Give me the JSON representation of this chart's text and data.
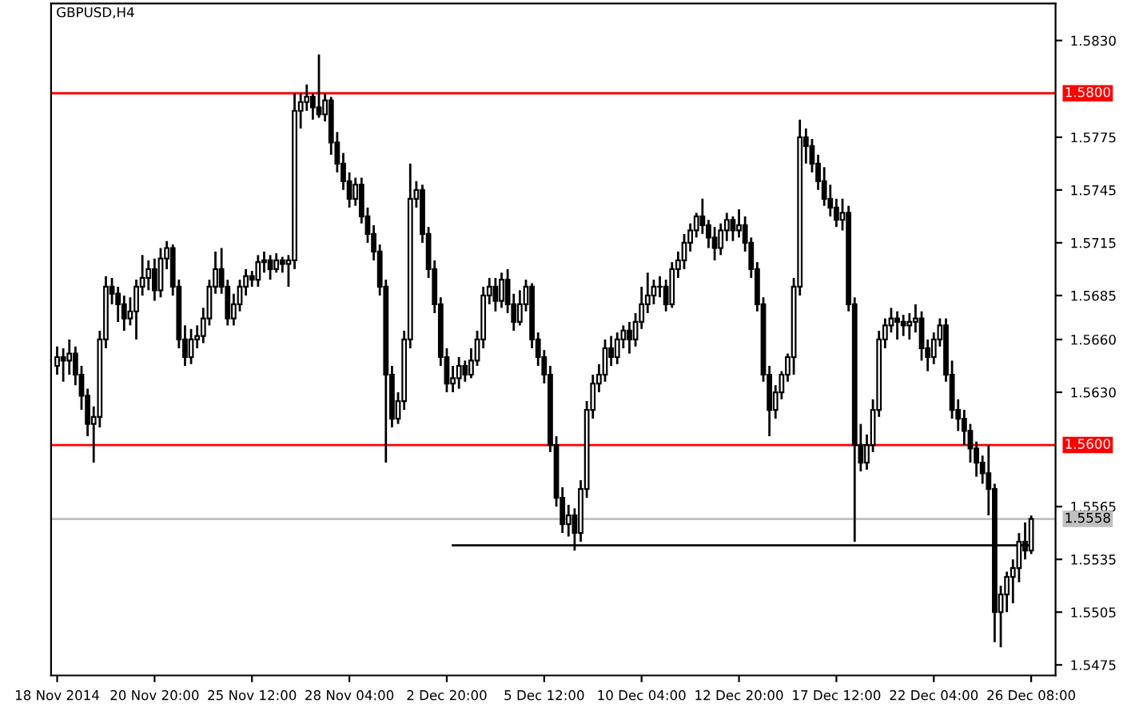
{
  "chart_data": {
    "type": "candlestick",
    "title": "GBPUSD,H4",
    "color": "#000000",
    "categories": [
      "18 Nov 2014",
      null,
      null,
      null,
      null,
      null,
      null,
      null,
      null,
      null,
      null,
      null,
      null,
      null,
      null,
      null,
      "20 Nov 20:00",
      null,
      null,
      null,
      null,
      null,
      null,
      null,
      null,
      null,
      null,
      null,
      null,
      null,
      null,
      null,
      "25 Nov 12:00",
      null,
      null,
      null,
      null,
      null,
      null,
      null,
      null,
      null,
      null,
      null,
      null,
      null,
      null,
      null,
      "28 Nov 04:00",
      null,
      null,
      null,
      null,
      null,
      null,
      null,
      null,
      null,
      null,
      null,
      null,
      null,
      null,
      null,
      "2 Dec 20:00",
      null,
      null,
      null,
      null,
      null,
      null,
      null,
      null,
      null,
      null,
      null,
      null,
      null,
      null,
      null,
      "5 Dec 12:00",
      null,
      null,
      null,
      null,
      null,
      null,
      null,
      null,
      null,
      null,
      null,
      null,
      null,
      null,
      null,
      "10 Dec 04:00",
      null,
      null,
      null,
      null,
      null,
      null,
      null,
      null,
      null,
      null,
      null,
      null,
      null,
      null,
      null,
      "12 Dec 20:00",
      null,
      null,
      null,
      null,
      null,
      null,
      null,
      null,
      null,
      null,
      null,
      null,
      null,
      null,
      null,
      "17 Dec 12:00",
      null,
      null,
      null,
      null,
      null,
      null,
      null,
      null,
      null,
      null,
      null,
      null,
      null,
      null,
      null,
      "22 Dec 04:00",
      null,
      null,
      null,
      null,
      null,
      null,
      null,
      null,
      null,
      null,
      null,
      null,
      null,
      null,
      null,
      "26 Dec 08:00"
    ],
    "ohlc": [
      [
        1.5645,
        1.5656,
        1.564,
        1.565
      ],
      [
        1.565,
        1.5655,
        1.5636,
        1.5648
      ],
      [
        1.5648,
        1.566,
        1.564,
        1.5652
      ],
      [
        1.5652,
        1.5656,
        1.5634,
        1.564
      ],
      [
        1.564,
        1.5645,
        1.562,
        1.5628
      ],
      [
        1.5628,
        1.5632,
        1.5605,
        1.5612
      ],
      [
        1.5612,
        1.5622,
        1.559,
        1.5616
      ],
      [
        1.5616,
        1.5665,
        1.561,
        1.566
      ],
      [
        1.566,
        1.5696,
        1.5655,
        1.569
      ],
      [
        1.569,
        1.5695,
        1.568,
        1.5686
      ],
      [
        1.5686,
        1.569,
        1.567,
        1.568
      ],
      [
        1.568,
        1.5685,
        1.5665,
        1.5672
      ],
      [
        1.5672,
        1.5684,
        1.5668,
        1.5676
      ],
      [
        1.5676,
        1.5694,
        1.566,
        1.569
      ],
      [
        1.569,
        1.5708,
        1.5685,
        1.5695
      ],
      [
        1.5695,
        1.5705,
        1.5688,
        1.57
      ],
      [
        1.57,
        1.5706,
        1.5682,
        1.5688
      ],
      [
        1.5688,
        1.5712,
        1.5684,
        1.5706
      ],
      [
        1.5706,
        1.5716,
        1.57,
        1.5712
      ],
      [
        1.5712,
        1.5714,
        1.5685,
        1.569
      ],
      [
        1.569,
        1.5694,
        1.5655,
        1.566
      ],
      [
        1.566,
        1.5668,
        1.5645,
        1.565
      ],
      [
        1.565,
        1.5666,
        1.5646,
        1.566
      ],
      [
        1.566,
        1.5668,
        1.5655,
        1.5662
      ],
      [
        1.5662,
        1.5678,
        1.5658,
        1.5672
      ],
      [
        1.5672,
        1.5694,
        1.5668,
        1.569
      ],
      [
        1.569,
        1.571,
        1.5686,
        1.57
      ],
      [
        1.57,
        1.5712,
        1.5686,
        1.569
      ],
      [
        1.569,
        1.5694,
        1.5668,
        1.5672
      ],
      [
        1.5672,
        1.5686,
        1.5668,
        1.568
      ],
      [
        1.568,
        1.5694,
        1.5676,
        1.569
      ],
      [
        1.569,
        1.57,
        1.5685,
        1.5696
      ],
      [
        1.5696,
        1.5699,
        1.569,
        1.5694
      ],
      [
        1.5694,
        1.5708,
        1.569,
        1.5704
      ],
      [
        1.5704,
        1.571,
        1.5698,
        1.5705
      ],
      [
        1.5705,
        1.5708,
        1.5694,
        1.57
      ],
      [
        1.57,
        1.5709,
        1.5698,
        1.5705
      ],
      [
        1.5705,
        1.5707,
        1.5698,
        1.5703
      ],
      [
        1.5703,
        1.5708,
        1.569,
        1.5705
      ],
      [
        1.5705,
        1.58,
        1.57,
        1.579
      ],
      [
        1.579,
        1.58,
        1.578,
        1.5795
      ],
      [
        1.5795,
        1.5805,
        1.579,
        1.5798
      ],
      [
        1.5798,
        1.58,
        1.5785,
        1.5792
      ],
      [
        1.5792,
        1.5822,
        1.5786,
        1.5788
      ],
      [
        1.5788,
        1.58,
        1.5784,
        1.5796
      ],
      [
        1.5796,
        1.5798,
        1.5765,
        1.5772
      ],
      [
        1.5772,
        1.5778,
        1.5755,
        1.576
      ],
      [
        1.576,
        1.5766,
        1.5745,
        1.575
      ],
      [
        1.575,
        1.5755,
        1.5735,
        1.574
      ],
      [
        1.574,
        1.5752,
        1.5736,
        1.5748
      ],
      [
        1.5748,
        1.5752,
        1.5726,
        1.573
      ],
      [
        1.573,
        1.5735,
        1.5715,
        1.572
      ],
      [
        1.572,
        1.5725,
        1.5705,
        1.571
      ],
      [
        1.571,
        1.5714,
        1.5685,
        1.569
      ],
      [
        1.569,
        1.5694,
        1.559,
        1.564
      ],
      [
        1.564,
        1.5645,
        1.561,
        1.5615
      ],
      [
        1.5615,
        1.563,
        1.5612,
        1.5625
      ],
      [
        1.5625,
        1.5665,
        1.562,
        1.566
      ],
      [
        1.566,
        1.576,
        1.5655,
        1.574
      ],
      [
        1.574,
        1.575,
        1.5735,
        1.5745
      ],
      [
        1.5745,
        1.5748,
        1.5715,
        1.572
      ],
      [
        1.572,
        1.5724,
        1.5695,
        1.57
      ],
      [
        1.57,
        1.5705,
        1.5675,
        1.568
      ],
      [
        1.568,
        1.5684,
        1.5645,
        1.565
      ],
      [
        1.565,
        1.5655,
        1.563,
        1.5635
      ],
      [
        1.5635,
        1.5645,
        1.563,
        1.5638
      ],
      [
        1.5638,
        1.565,
        1.5632,
        1.5645
      ],
      [
        1.5645,
        1.5648,
        1.5636,
        1.564
      ],
      [
        1.564,
        1.5655,
        1.5638,
        1.5648
      ],
      [
        1.5648,
        1.5665,
        1.5645,
        1.566
      ],
      [
        1.566,
        1.569,
        1.5655,
        1.5685
      ],
      [
        1.5685,
        1.5695,
        1.568,
        1.569
      ],
      [
        1.569,
        1.5695,
        1.5676,
        1.5682
      ],
      [
        1.5682,
        1.5698,
        1.5678,
        1.5694
      ],
      [
        1.5694,
        1.57,
        1.5675,
        1.568
      ],
      [
        1.568,
        1.5686,
        1.5665,
        1.567
      ],
      [
        1.567,
        1.5688,
        1.5668,
        1.568
      ],
      [
        1.568,
        1.5694,
        1.5676,
        1.569
      ],
      [
        1.569,
        1.5692,
        1.5655,
        1.566
      ],
      [
        1.566,
        1.5664,
        1.5645,
        1.565
      ],
      [
        1.565,
        1.5654,
        1.5635,
        1.564
      ],
      [
        1.564,
        1.5645,
        1.5596,
        1.56
      ],
      [
        1.56,
        1.5605,
        1.5565,
        1.557
      ],
      [
        1.557,
        1.5576,
        1.555,
        1.5555
      ],
      [
        1.5555,
        1.5566,
        1.5548,
        1.556
      ],
      [
        1.556,
        1.5564,
        1.554,
        1.555
      ],
      [
        1.555,
        1.558,
        1.5545,
        1.5575
      ],
      [
        1.5575,
        1.5625,
        1.557,
        1.562
      ],
      [
        1.562,
        1.564,
        1.5615,
        1.5635
      ],
      [
        1.5635,
        1.5646,
        1.563,
        1.564
      ],
      [
        1.564,
        1.566,
        1.5636,
        1.5655
      ],
      [
        1.5655,
        1.5662,
        1.5645,
        1.565
      ],
      [
        1.565,
        1.5664,
        1.5646,
        1.566
      ],
      [
        1.566,
        1.5668,
        1.5655,
        1.5665
      ],
      [
        1.5665,
        1.567,
        1.5652,
        1.566
      ],
      [
        1.566,
        1.5675,
        1.5656,
        1.567
      ],
      [
        1.567,
        1.569,
        1.5666,
        1.568
      ],
      [
        1.568,
        1.5698,
        1.5675,
        1.5685
      ],
      [
        1.5685,
        1.5694,
        1.568,
        1.569
      ],
      [
        1.569,
        1.5696,
        1.5684,
        1.569
      ],
      [
        1.569,
        1.5694,
        1.5676,
        1.568
      ],
      [
        1.568,
        1.5704,
        1.5678,
        1.57
      ],
      [
        1.57,
        1.571,
        1.5695,
        1.5705
      ],
      [
        1.5705,
        1.572,
        1.57,
        1.5715
      ],
      [
        1.5715,
        1.5726,
        1.571,
        1.5722
      ],
      [
        1.5722,
        1.5732,
        1.5718,
        1.573
      ],
      [
        1.573,
        1.574,
        1.572,
        1.5725
      ],
      [
        1.5725,
        1.5728,
        1.5712,
        1.5718
      ],
      [
        1.5718,
        1.5724,
        1.5705,
        1.5712
      ],
      [
        1.5712,
        1.5726,
        1.5708,
        1.5722
      ],
      [
        1.5722,
        1.5732,
        1.5716,
        1.5728
      ],
      [
        1.5728,
        1.573,
        1.5716,
        1.5722
      ],
      [
        1.5722,
        1.5734,
        1.5718,
        1.5725
      ],
      [
        1.5725,
        1.573,
        1.571,
        1.5715
      ],
      [
        1.5715,
        1.5718,
        1.5695,
        1.57
      ],
      [
        1.57,
        1.5704,
        1.5676,
        1.568
      ],
      [
        1.568,
        1.5684,
        1.5636,
        1.564
      ],
      [
        1.564,
        1.5645,
        1.5605,
        1.562
      ],
      [
        1.562,
        1.5634,
        1.5615,
        1.563
      ],
      [
        1.563,
        1.5642,
        1.5626,
        1.564
      ],
      [
        1.564,
        1.5652,
        1.5636,
        1.565
      ],
      [
        1.565,
        1.5695,
        1.564,
        1.569
      ],
      [
        1.569,
        1.5785,
        1.5685,
        1.5775
      ],
      [
        1.5775,
        1.578,
        1.576,
        1.577
      ],
      [
        1.577,
        1.5774,
        1.5755,
        1.576
      ],
      [
        1.576,
        1.5765,
        1.5745,
        1.575
      ],
      [
        1.575,
        1.5758,
        1.5736,
        1.574
      ],
      [
        1.574,
        1.5748,
        1.573,
        1.5735
      ],
      [
        1.5735,
        1.574,
        1.5724,
        1.5728
      ],
      [
        1.5728,
        1.574,
        1.5722,
        1.5732
      ],
      [
        1.5732,
        1.5736,
        1.5676,
        1.568
      ],
      [
        1.568,
        1.5684,
        1.5545,
        1.56
      ],
      [
        1.56,
        1.5612,
        1.5585,
        1.559
      ],
      [
        1.559,
        1.5606,
        1.5586,
        1.56
      ],
      [
        1.56,
        1.5626,
        1.5596,
        1.562
      ],
      [
        1.562,
        1.5665,
        1.5616,
        1.566
      ],
      [
        1.566,
        1.5672,
        1.5655,
        1.5668
      ],
      [
        1.5668,
        1.5678,
        1.5664,
        1.5672
      ],
      [
        1.5672,
        1.5676,
        1.566,
        1.567
      ],
      [
        1.567,
        1.5674,
        1.5662,
        1.5668
      ],
      [
        1.5668,
        1.5675,
        1.566,
        1.567
      ],
      [
        1.567,
        1.568,
        1.5664,
        1.5672
      ],
      [
        1.5672,
        1.5676,
        1.5648,
        1.5655
      ],
      [
        1.5655,
        1.566,
        1.5642,
        1.565
      ],
      [
        1.565,
        1.5664,
        1.5646,
        1.566
      ],
      [
        1.566,
        1.5672,
        1.5656,
        1.5668
      ],
      [
        1.5668,
        1.5672,
        1.5636,
        1.564
      ],
      [
        1.564,
        1.5648,
        1.5615,
        1.562
      ],
      [
        1.562,
        1.5626,
        1.5608,
        1.5615
      ],
      [
        1.5615,
        1.562,
        1.56,
        1.5608
      ],
      [
        1.5608,
        1.5612,
        1.559,
        1.5598
      ],
      [
        1.5598,
        1.5602,
        1.5582,
        1.559
      ],
      [
        1.559,
        1.5594,
        1.5578,
        1.5584
      ],
      [
        1.5584,
        1.56,
        1.556,
        1.5575
      ],
      [
        1.5575,
        1.5578,
        1.5488,
        1.5505
      ],
      [
        1.5505,
        1.552,
        1.5485,
        1.5515
      ],
      [
        1.5515,
        1.5528,
        1.5505,
        1.5525
      ],
      [
        1.5525,
        1.5535,
        1.551,
        1.553
      ],
      [
        1.553,
        1.555,
        1.5522,
        1.5545
      ],
      [
        1.5545,
        1.5556,
        1.5535,
        1.554
      ],
      [
        1.554,
        1.556,
        1.5538,
        1.5558
      ]
    ],
    "series": [
      {
        "type": "line",
        "color": "#000000",
        "values": [
          null,
          null,
          null,
          null,
          null,
          null,
          null,
          null,
          null,
          null,
          null,
          null,
          null,
          null,
          null,
          null,
          null,
          null,
          null,
          null,
          null,
          null,
          null,
          null,
          null,
          null,
          null,
          null,
          null,
          null,
          null,
          null,
          null,
          null,
          null,
          null,
          null,
          null,
          null,
          null,
          null,
          null,
          null,
          null,
          null,
          null,
          null,
          null,
          null,
          null,
          null,
          null,
          null,
          null,
          null,
          null,
          null,
          null,
          null,
          null,
          null,
          null,
          null,
          null,
          null,
          1.5543,
          1.5543,
          1.5543,
          1.5543,
          1.5543,
          1.5543,
          1.5543,
          1.5543,
          1.5543,
          1.5543,
          1.5543,
          1.5543,
          1.5543,
          1.5543,
          1.5543,
          1.5543,
          1.5543,
          1.5543,
          1.5543,
          1.5543,
          1.5543,
          1.5543,
          1.5543,
          1.5543,
          1.5543,
          1.5543,
          1.5543,
          1.5543,
          1.5543,
          1.5543,
          1.5543,
          1.5543,
          1.5543,
          1.5543,
          1.5543,
          1.5543,
          1.5543,
          1.5543,
          1.5543,
          1.5543,
          1.5543,
          1.5543,
          1.5543,
          1.5543,
          1.5543,
          1.5543,
          1.5543,
          1.5543,
          1.5543,
          1.5543,
          1.5543,
          1.5543,
          1.5543,
          1.5543,
          1.5543,
          1.5543,
          1.5543,
          1.5543,
          1.5543,
          1.5543,
          1.5543,
          1.5543,
          1.5543,
          1.5543,
          1.5543,
          1.5543,
          1.5543,
          1.5543,
          1.5543,
          1.5543,
          1.5543,
          1.5543,
          1.5543,
          1.5543,
          1.5543,
          1.5543,
          1.5543,
          1.5543,
          1.5543,
          1.5543,
          1.5543,
          1.5543,
          1.5543,
          1.5543,
          1.5543,
          1.5543,
          1.5543,
          1.5543,
          1.5543,
          1.5543,
          1.5543,
          1.5543,
          1.5543,
          1.5543,
          1.5543,
          1.5543
        ]
      }
    ],
    "ylim": [
      1.5469,
      1.5851
    ],
    "yticks": [
      1.5475,
      1.5505,
      1.5535,
      1.5565,
      {
        "value": 1.563,
        "label": "1.5630"
      },
      {
        "value": 1.566,
        "label": "1.5660"
      },
      1.5685,
      1.5715,
      1.5745,
      1.5775,
      {
        "value": 1.583,
        "label": "1.5830"
      }
    ],
    "ref_lines": [
      {
        "axis": "y",
        "value": 1.58,
        "label": "1.5800",
        "color": "#ff0000"
      },
      {
        "axis": "y",
        "value": 1.56,
        "label": "1.5600",
        "color": "#ff0000"
      },
      {
        "axis": "y",
        "value": 1.5558,
        "label": "1.5558",
        "color": "#c0c0c0"
      }
    ],
    "grid": false,
    "legend": false
  }
}
